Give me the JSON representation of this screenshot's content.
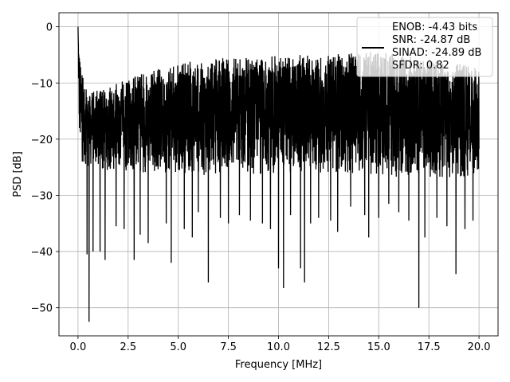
{
  "chart_data": {
    "type": "line",
    "title": "",
    "xlabel": "Frequency [MHz]",
    "ylabel": "PSD [dB]",
    "xlim": [
      -0.95,
      20.95
    ],
    "ylim": [
      -55,
      2.5
    ],
    "xticks": [
      0.0,
      2.5,
      5.0,
      7.5,
      10.0,
      12.5,
      15.0,
      17.5,
      20.0
    ],
    "xtick_labels": [
      "0.0",
      "2.5",
      "5.0",
      "7.5",
      "10.0",
      "12.5",
      "15.0",
      "17.5",
      "20.0"
    ],
    "yticks": [
      0,
      -10,
      -20,
      -30,
      -40,
      -50
    ],
    "ytick_labels": [
      "0",
      "−10",
      "−20",
      "−30",
      "−40",
      "−50"
    ],
    "grid": true,
    "legend": {
      "placement": "upper-right",
      "entries": [
        "ENOB: -4.43 bits",
        "SNR: -24.87 dB",
        "SINAD: -24.89 dB",
        "SFDR: 0.82"
      ]
    },
    "series": [
      {
        "color": "#000000",
        "envelope": {
          "x": [
            0.0,
            0.05,
            0.15,
            0.3,
            0.5,
            1.0,
            2.0,
            3.0,
            4.0,
            5.0,
            6.0,
            7.5,
            9.0,
            10.0,
            11.0,
            12.5,
            14.0,
            15.0,
            16.0,
            17.0,
            18.0,
            19.0,
            20.0
          ],
          "upper": [
            0.0,
            -3.0,
            -8.0,
            -11.0,
            -12.0,
            -13.0,
            -11.5,
            -10.0,
            -9.0,
            -8.0,
            -7.5,
            -7.0,
            -7.0,
            -6.5,
            -6.5,
            -6.5,
            -6.0,
            -6.0,
            -6.5,
            -7.0,
            -7.5,
            -8.0,
            -9.0
          ],
          "lower": [
            -2.0,
            -20.0,
            -24.0,
            -24.5,
            -25.0,
            -25.5,
            -26.0,
            -26.0,
            -26.0,
            -26.0,
            -26.5,
            -26.5,
            -26.5,
            -26.0,
            -26.0,
            -26.0,
            -26.5,
            -26.5,
            -27.0,
            -27.0,
            -27.0,
            -27.0,
            -27.0
          ]
        },
        "dips": [
          {
            "x": 0.45,
            "y": -40.5
          },
          {
            "x": 0.55,
            "y": -52.5
          },
          {
            "x": 0.75,
            "y": -40.0
          },
          {
            "x": 1.1,
            "y": -40.0
          },
          {
            "x": 1.35,
            "y": -41.5
          },
          {
            "x": 1.9,
            "y": -35.5
          },
          {
            "x": 2.3,
            "y": -36.0
          },
          {
            "x": 2.8,
            "y": -41.5
          },
          {
            "x": 3.1,
            "y": -37.0
          },
          {
            "x": 3.5,
            "y": -38.5
          },
          {
            "x": 4.4,
            "y": -35.0
          },
          {
            "x": 4.65,
            "y": -42.0
          },
          {
            "x": 5.3,
            "y": -36.0
          },
          {
            "x": 5.7,
            "y": -37.5
          },
          {
            "x": 6.0,
            "y": -33.0
          },
          {
            "x": 6.5,
            "y": -45.5
          },
          {
            "x": 7.1,
            "y": -34.0
          },
          {
            "x": 7.5,
            "y": -35.0
          },
          {
            "x": 8.05,
            "y": -33.5
          },
          {
            "x": 8.6,
            "y": -34.5
          },
          {
            "x": 9.2,
            "y": -35.0
          },
          {
            "x": 9.6,
            "y": -36.0
          },
          {
            "x": 10.0,
            "y": -43.0
          },
          {
            "x": 10.25,
            "y": -46.5
          },
          {
            "x": 10.6,
            "y": -33.5
          },
          {
            "x": 11.1,
            "y": -43.0
          },
          {
            "x": 11.3,
            "y": -45.5
          },
          {
            "x": 11.6,
            "y": -35.0
          },
          {
            "x": 12.0,
            "y": -34.0
          },
          {
            "x": 12.6,
            "y": -34.5
          },
          {
            "x": 12.95,
            "y": -36.5
          },
          {
            "x": 13.6,
            "y": -32.0
          },
          {
            "x": 14.3,
            "y": -33.5
          },
          {
            "x": 14.5,
            "y": -37.5
          },
          {
            "x": 15.0,
            "y": -34.0
          },
          {
            "x": 15.5,
            "y": -31.5
          },
          {
            "x": 16.0,
            "y": -33.0
          },
          {
            "x": 16.5,
            "y": -34.5
          },
          {
            "x": 17.0,
            "y": -50.0
          },
          {
            "x": 17.3,
            "y": -37.5
          },
          {
            "x": 17.9,
            "y": -34.0
          },
          {
            "x": 18.4,
            "y": -35.5
          },
          {
            "x": 18.85,
            "y": -44.0
          },
          {
            "x": 19.3,
            "y": -36.0
          },
          {
            "x": 19.7,
            "y": -34.5
          }
        ]
      }
    ]
  }
}
